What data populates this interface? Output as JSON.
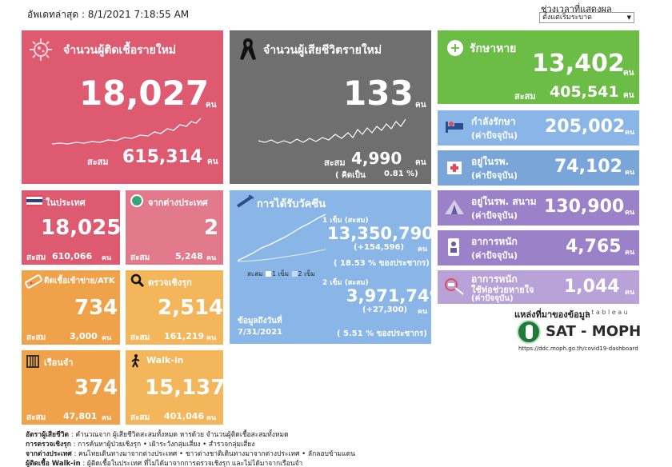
{
  "header": {
    "updated": "อัพเดทล่าสุด : 8/1/2021 7:18:55 AM",
    "range_label": "ช่วงเวลาที่แสดงผล",
    "range_value": "ตั้งแต่เริ่มระบาด"
  },
  "unit": "คน",
  "cumulative_label": "สะสม",
  "new_cases": {
    "title": "จำนวนผู้ติดเชื้อรายใหม่",
    "value": "18,027",
    "cumulative": "615,314"
  },
  "new_deaths": {
    "title": "จำนวนผู้เสียชีวิตรายใหม่",
    "value": "133",
    "cumulative": "4,990",
    "ratio_label": "( คิดเป็น",
    "ratio": "0.81 %)"
  },
  "recovered": {
    "title": "รักษาหาย",
    "value": "13,402",
    "cumulative": "405,541"
  },
  "current_label": "(ค่าปัจจุบัน)",
  "treating": {
    "title": "กำลังรักษา",
    "value": "205,002"
  },
  "hospital": {
    "title": "อยู่ในรพ.",
    "value": "74,102"
  },
  "field_hospital": {
    "title": "อยู่ในรพ. สนาม",
    "value": "130,900"
  },
  "severe": {
    "title": "อาการหนัก",
    "value": "4,765"
  },
  "ventilator": {
    "title": "อาการหนัก",
    "title2": "ใช้ท่อช่วยหายใจ",
    "value": "1,044"
  },
  "domestic": {
    "title": "ในประเทศ",
    "value": "18,025",
    "cumulative": "610,066"
  },
  "abroad": {
    "title": "จากต่างประเทศ",
    "value": "2",
    "cumulative": "5,248"
  },
  "atk": {
    "title": "ติดเชื้อเข้าข่าย/ATK",
    "value": "734",
    "cumulative": "3,000"
  },
  "proactive": {
    "title": "ตรวจเชิงรุก",
    "value": "2,514",
    "cumulative": "161,219"
  },
  "prison": {
    "title": "เรือนจำ",
    "value": "374",
    "cumulative": "47,801"
  },
  "walkin": {
    "title": "Walk-in",
    "value": "15,137",
    "cumulative": "401,046"
  },
  "vaccine": {
    "title": "การได้รับวัคซีน",
    "dose1_label": "1 เข็ม (สะสม)",
    "dose1_value": "13,350,790",
    "dose1_delta": "(+154,596)",
    "dose1_pct": "( 18.53 % ของประชากร)",
    "dose2_label": "2 เข็ม (สะสม)",
    "dose2_value": "3,971,749",
    "dose2_delta": "(+27,300)",
    "dose2_pct": "( 5.51 % ของประชากร)",
    "legend_cum": "สะสม",
    "legend_1": "1 เข็ม",
    "legend_2": "2 เข็ม",
    "data_date_label": "ข้อมูลถึงวันที่",
    "data_date": "7/31/2021"
  },
  "source": {
    "label": "แหล่งที่มาของข้อมูล",
    "tableau": "+ t a b l e a u",
    "org": "SAT - MOPH",
    "url": "https://ddc.moph.go.th/covid19-dashboard"
  },
  "notes": [
    {
      "key": "อัตราผู้เสียชีวิต",
      "text": " : คำนวณจาก ผู้เสียชีวิตสะสมทั้งหมด หารด้วย จำนวนผู้ติดเชื้อสะสมทั้งหมด"
    },
    {
      "key": "การตรวจเชิงรุก",
      "text": " : การค้นหาผู้ป่วยเชิงรุก • เฝ้าระวังกลุ่มเสี่ยง • สำรวจกลุ่มเสี่ยง"
    },
    {
      "key": "จากต่างประเทศ",
      "text": " : คนไทยเดินทางมาจากต่างประเทศ • ชาวต่างชาติเดินทางมาจากต่างประเทศ • ลักลอบข้ามแดน"
    },
    {
      "key": "ผู้ติดเชื้อ Walk-in",
      "text": " : ผู้ติดเชื้อในประเทศ ที่ไม่ได้มาจากการตรวจเชิงรุก และไม่ได้มาจากเรือนจำ"
    }
  ],
  "colors": {
    "pink": "#dd5a70",
    "dark": "#6f6f6f",
    "green": "#6bbd45",
    "blue": "#89b6e6",
    "purple": "#9b82c8",
    "orange": "#f0a24a"
  }
}
